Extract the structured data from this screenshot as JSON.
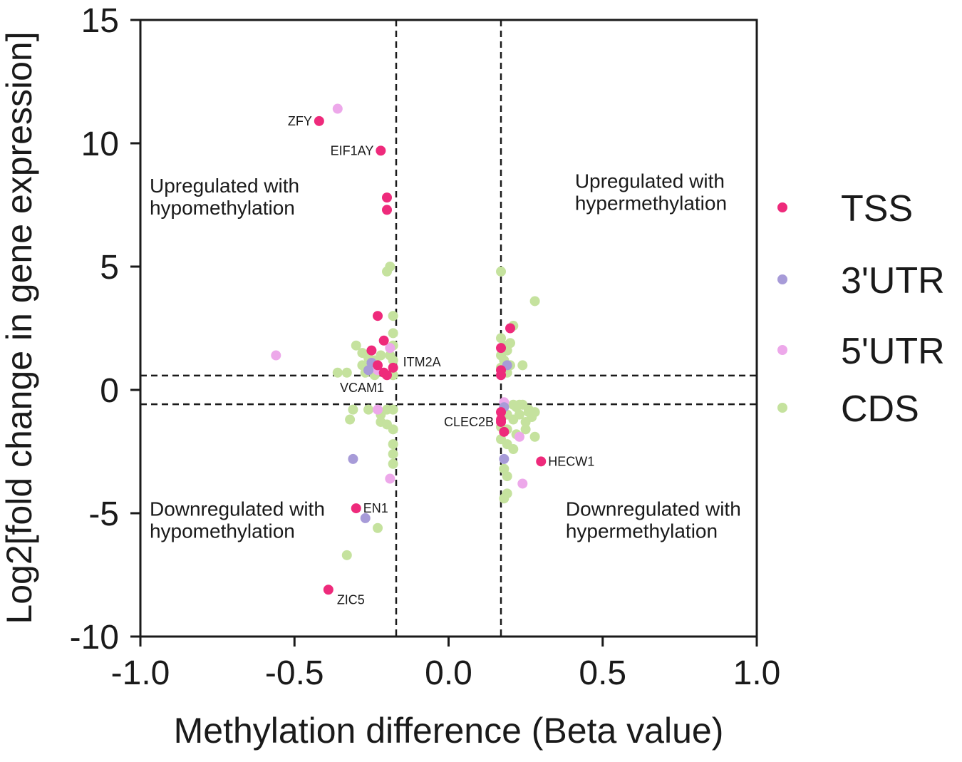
{
  "chart_data": {
    "type": "scatter",
    "title": "",
    "xlabel": "Methylation difference (Beta value)",
    "ylabel": "Log2[fold change in gene expression]",
    "xlim": [
      -1.0,
      1.0
    ],
    "ylim": [
      -10,
      15
    ],
    "x_ticks": [
      -1.0,
      -0.5,
      0.0,
      0.5,
      1.0
    ],
    "x_tick_labels": [
      "-1.0",
      "-0.5",
      "0.0",
      "0.5",
      "1.0"
    ],
    "y_ticks": [
      -10,
      -5,
      0,
      5,
      10,
      15
    ],
    "y_tick_labels": [
      "-10",
      "-5",
      "0",
      "5",
      "10",
      "15"
    ],
    "thresholds": {
      "x": [
        -0.17,
        0.17
      ],
      "y": [
        -0.58,
        0.58
      ]
    },
    "legend_position": "right",
    "quadrant_labels": [
      {
        "id": "ul",
        "line1": "Upregulated with",
        "line2": "hypomethylation",
        "anchor": [
          -0.97,
          8.0
        ]
      },
      {
        "id": "ur",
        "line1": "Upregulated with",
        "line2": "hypermethylation",
        "anchor": [
          0.41,
          8.2
        ]
      },
      {
        "id": "ll",
        "line1": "Downregulated with",
        "line2": "hypomethylation",
        "anchor": [
          -0.97,
          -5.1
        ]
      },
      {
        "id": "lr",
        "line1": "Downregulated with",
        "line2": "hypermethylation",
        "anchor": [
          0.38,
          -5.1
        ]
      }
    ],
    "series": [
      {
        "name": "TSS",
        "color": "#ee2a7b",
        "points": [
          [
            -0.42,
            10.9
          ],
          [
            -0.22,
            9.7
          ],
          [
            -0.2,
            7.8
          ],
          [
            -0.2,
            7.3
          ],
          [
            -0.23,
            3.0
          ],
          [
            -0.21,
            2.0
          ],
          [
            -0.25,
            1.6
          ],
          [
            -0.23,
            1.0
          ],
          [
            -0.21,
            0.7
          ],
          [
            -0.18,
            0.9
          ],
          [
            -0.2,
            0.6
          ],
          [
            0.17,
            1.7
          ],
          [
            0.17,
            0.8
          ],
          [
            0.17,
            0.6
          ],
          [
            0.2,
            2.5
          ],
          [
            0.17,
            -0.9
          ],
          [
            0.17,
            -1.2
          ],
          [
            0.17,
            -1.3
          ],
          [
            0.18,
            -1.7
          ],
          [
            0.3,
            -2.9
          ],
          [
            -0.3,
            -4.8
          ],
          [
            -0.39,
            -8.1
          ]
        ]
      },
      {
        "name": "3'UTR",
        "color": "#a79bd8",
        "points": [
          [
            -0.25,
            1.1
          ],
          [
            -0.26,
            0.8
          ],
          [
            0.19,
            1.0
          ],
          [
            0.18,
            -0.7
          ],
          [
            0.18,
            -2.8
          ],
          [
            -0.31,
            -2.8
          ],
          [
            -0.27,
            -5.2
          ]
        ]
      },
      {
        "name": "5'UTR",
        "color": "#eda8ea",
        "points": [
          [
            -0.36,
            11.4
          ],
          [
            -0.56,
            1.4
          ],
          [
            -0.19,
            1.7
          ],
          [
            -0.23,
            0.8
          ],
          [
            -0.19,
            -3.6
          ],
          [
            -0.23,
            -0.8
          ],
          [
            0.23,
            -1.9
          ],
          [
            0.24,
            -3.8
          ],
          [
            0.18,
            -0.5
          ]
        ]
      },
      {
        "name": "CDS",
        "color": "#c5e29e",
        "points": [
          [
            -0.2,
            4.8
          ],
          [
            -0.19,
            5.0
          ],
          [
            -0.18,
            3.0
          ],
          [
            -0.18,
            2.3
          ],
          [
            -0.18,
            1.8
          ],
          [
            -0.3,
            1.8
          ],
          [
            -0.28,
            1.5
          ],
          [
            -0.26,
            1.3
          ],
          [
            -0.24,
            1.2
          ],
          [
            -0.22,
            1.4
          ],
          [
            -0.19,
            1.4
          ],
          [
            -0.18,
            1.2
          ],
          [
            -0.33,
            0.7
          ],
          [
            -0.36,
            0.7
          ],
          [
            -0.28,
            1.0
          ],
          [
            -0.24,
            0.6
          ],
          [
            -0.27,
            0.7
          ],
          [
            -0.18,
            0.6
          ],
          [
            -0.26,
            -0.8
          ],
          [
            -0.31,
            -0.8
          ],
          [
            -0.2,
            -0.8
          ],
          [
            -0.18,
            -0.8
          ],
          [
            -0.22,
            -1.0
          ],
          [
            -0.32,
            -1.2
          ],
          [
            -0.22,
            -1.3
          ],
          [
            -0.2,
            -1.4
          ],
          [
            -0.18,
            -1.6
          ],
          [
            -0.18,
            -2.2
          ],
          [
            -0.18,
            -2.6
          ],
          [
            -0.18,
            -3.0
          ],
          [
            -0.23,
            -5.6
          ],
          [
            -0.33,
            -6.7
          ],
          [
            0.17,
            4.8
          ],
          [
            0.28,
            3.6
          ],
          [
            0.21,
            2.6
          ],
          [
            0.17,
            2.1
          ],
          [
            0.18,
            1.8
          ],
          [
            0.19,
            1.6
          ],
          [
            0.2,
            1.9
          ],
          [
            0.17,
            1.4
          ],
          [
            0.18,
            1.2
          ],
          [
            0.2,
            1.0
          ],
          [
            0.24,
            1.0
          ],
          [
            0.17,
            0.9
          ],
          [
            0.19,
            0.7
          ],
          [
            0.21,
            -0.6
          ],
          [
            0.22,
            -0.7
          ],
          [
            0.24,
            -0.6
          ],
          [
            0.26,
            -0.8
          ],
          [
            0.28,
            -0.9
          ],
          [
            0.19,
            -1.0
          ],
          [
            0.21,
            -1.2
          ],
          [
            0.23,
            -1.0
          ],
          [
            0.25,
            -1.3
          ],
          [
            0.27,
            -1.1
          ],
          [
            0.17,
            -1.5
          ],
          [
            0.19,
            -1.6
          ],
          [
            0.22,
            -1.8
          ],
          [
            0.17,
            -2.0
          ],
          [
            0.19,
            -2.2
          ],
          [
            0.21,
            -2.4
          ],
          [
            0.25,
            -1.6
          ],
          [
            0.28,
            -1.9
          ],
          [
            0.18,
            -3.2
          ],
          [
            0.19,
            -3.5
          ],
          [
            0.19,
            -4.2
          ],
          [
            0.18,
            -4.4
          ],
          [
            0.26,
            -0.9
          ],
          [
            0.23,
            -0.6
          ]
        ]
      }
    ],
    "annotations": [
      {
        "text": "ZFY",
        "x": -0.42,
        "y": 10.9,
        "side": "left"
      },
      {
        "text": "EIF1AY",
        "x": -0.22,
        "y": 9.7,
        "side": "left"
      },
      {
        "text": "ITM2A",
        "x": -0.18,
        "y": 0.9,
        "side": "right-up"
      },
      {
        "text": "VCAM1",
        "x": -0.2,
        "y": 0.6,
        "side": "below-left"
      },
      {
        "text": "CLEC2B",
        "x": 0.17,
        "y": -1.3,
        "side": "left"
      },
      {
        "text": "HECW1",
        "x": 0.3,
        "y": -2.9,
        "side": "right"
      },
      {
        "text": "EN1",
        "x": -0.3,
        "y": -4.8,
        "side": "right"
      },
      {
        "text": "ZIC5",
        "x": -0.39,
        "y": -8.1,
        "side": "right-down"
      }
    ]
  }
}
